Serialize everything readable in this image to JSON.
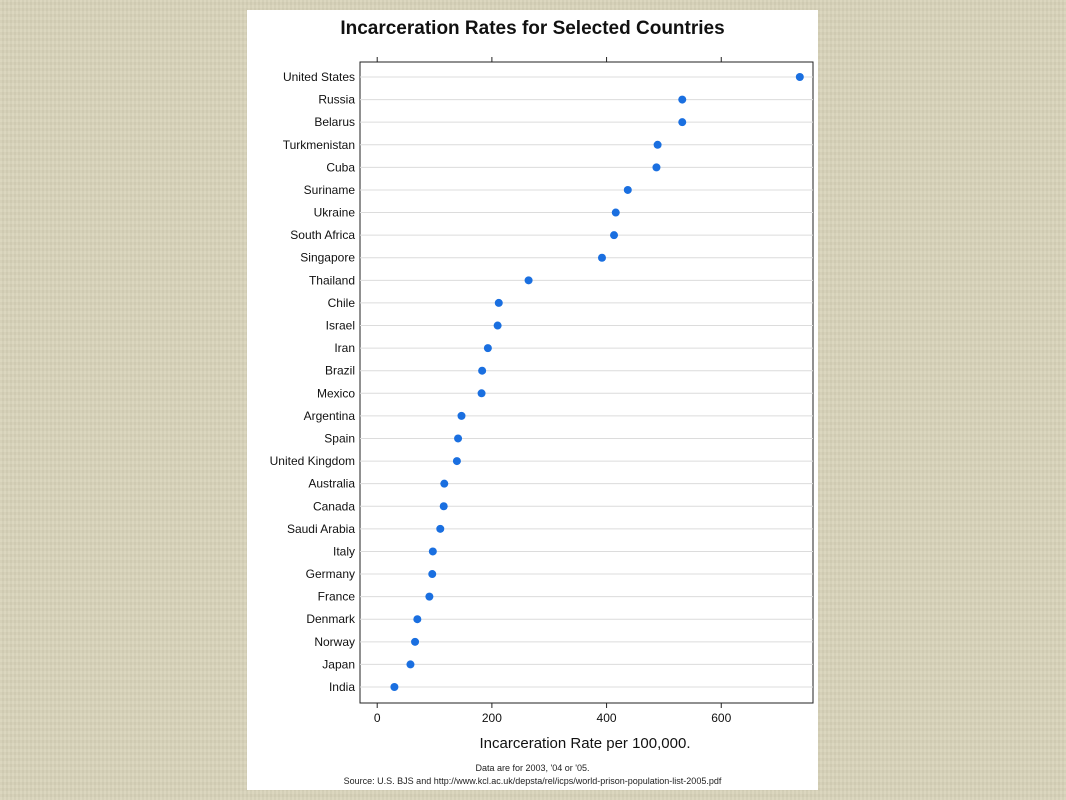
{
  "chart_data": {
    "type": "scatter",
    "title": "Incarceration Rates for Selected Countries",
    "xlabel": "Incarceration Rate per 100,000.",
    "ylabel": "",
    "xlim": [
      -30,
      760
    ],
    "xticks": [
      0,
      200,
      400,
      600
    ],
    "grid": true,
    "point_color": "#1a6fe0",
    "categories": [
      "United States",
      "Russia",
      "Belarus",
      "Turkmenistan",
      "Cuba",
      "Suriname",
      "Ukraine",
      "South Africa",
      "Singapore",
      "Thailand",
      "Chile",
      "Israel",
      "Iran",
      "Brazil",
      "Mexico",
      "Argentina",
      "Spain",
      "United Kingdom",
      "Australia",
      "Canada",
      "Saudi Arabia",
      "Italy",
      "Germany",
      "France",
      "Denmark",
      "Norway",
      "Japan",
      "India"
    ],
    "values": [
      737,
      532,
      532,
      489,
      487,
      437,
      416,
      413,
      392,
      264,
      212,
      210,
      193,
      183,
      182,
      147,
      141,
      139,
      117,
      116,
      110,
      97,
      96,
      91,
      70,
      66,
      58,
      30
    ],
    "notes": [
      "Data are for 2003, '04 or '05.",
      "Source: U.S. BJS and http://www.kcl.ac.uk/depsta/rel/icps/world-prison-population-list-2005.pdf"
    ]
  }
}
